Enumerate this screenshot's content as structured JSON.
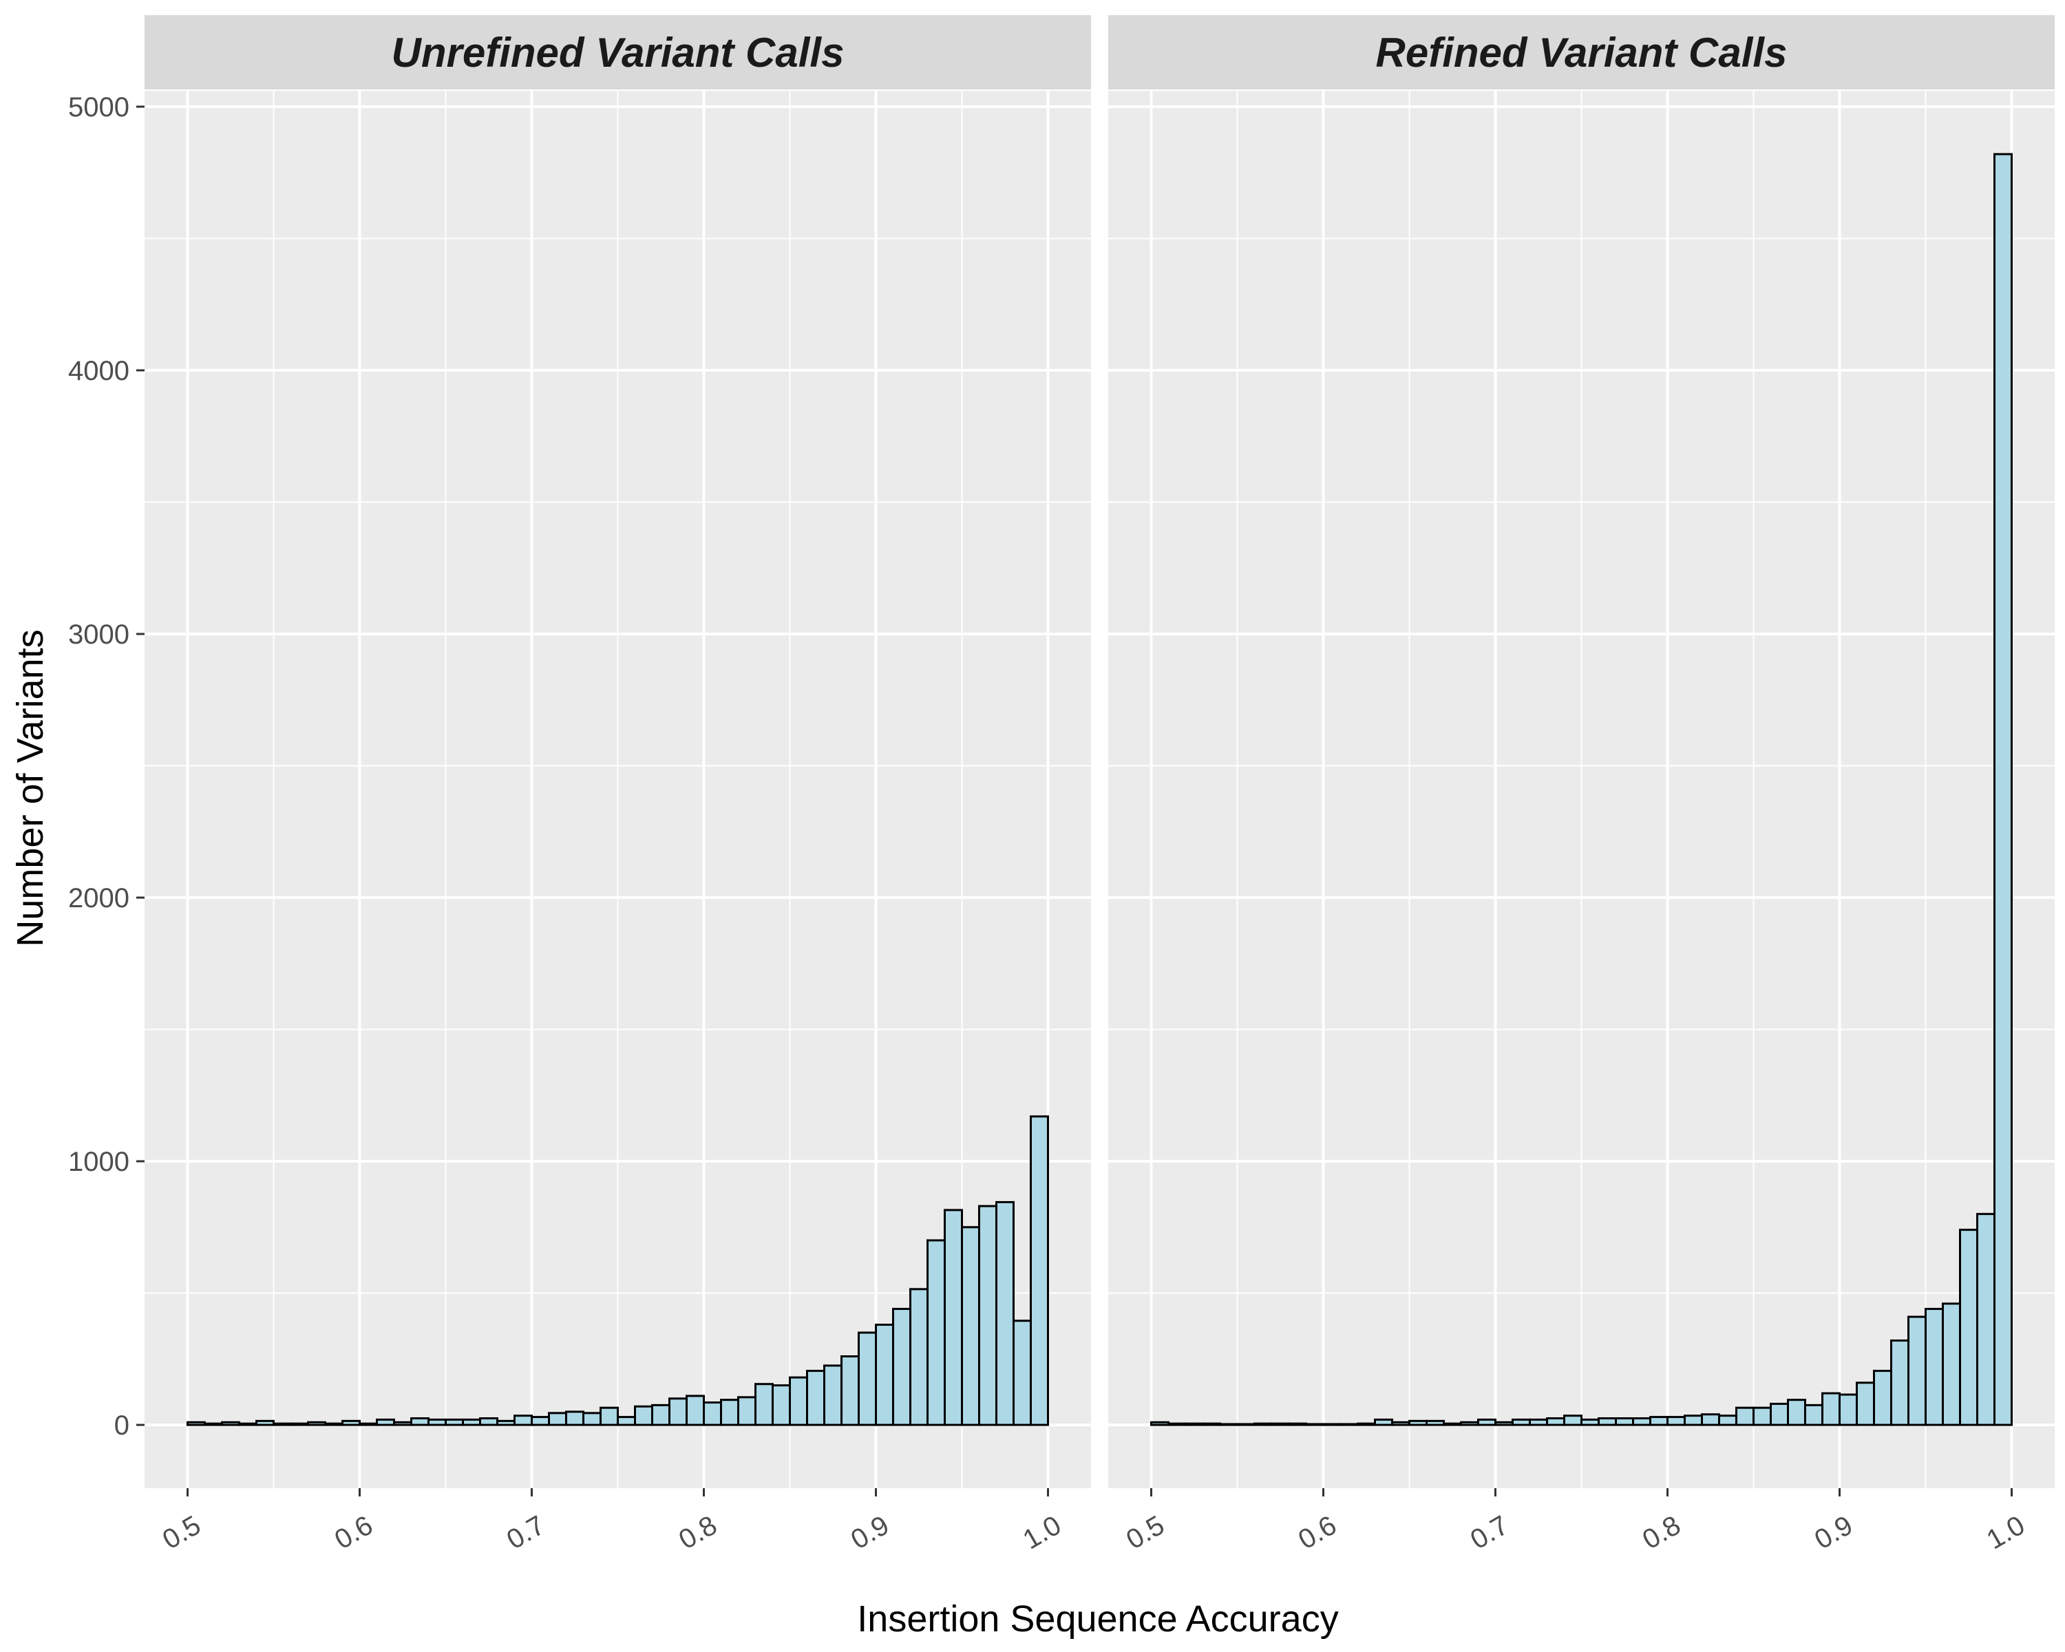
{
  "chart_data": {
    "type": "bar",
    "subtype": "faceted-histogram",
    "xlabel": "Insertion Sequence Accuracy",
    "ylabel": "Number of Variants",
    "xlim": [
      0.475,
      1.025
    ],
    "ylim": [
      -240,
      5060
    ],
    "x_ticks": [
      0.5,
      0.6,
      0.7,
      0.8,
      0.9,
      1.0
    ],
    "x_tick_labels": [
      "0.5",
      "0.6",
      "0.7",
      "0.8",
      "0.9",
      "1.0"
    ],
    "y_ticks": [
      0,
      1000,
      2000,
      3000,
      4000,
      5000
    ],
    "y_tick_labels": [
      "0",
      "1000",
      "2000",
      "3000",
      "4000",
      "5000"
    ],
    "bin_width": 0.01,
    "bin_starts": [
      0.5,
      0.51,
      0.52,
      0.53,
      0.54,
      0.55,
      0.56,
      0.57,
      0.58,
      0.59,
      0.6,
      0.61,
      0.62,
      0.63,
      0.64,
      0.65,
      0.66,
      0.67,
      0.68,
      0.69,
      0.7,
      0.71,
      0.72,
      0.73,
      0.74,
      0.75,
      0.76,
      0.77,
      0.78,
      0.79,
      0.8,
      0.81,
      0.82,
      0.83,
      0.84,
      0.85,
      0.86,
      0.87,
      0.88,
      0.89,
      0.9,
      0.91,
      0.92,
      0.93,
      0.94,
      0.95,
      0.96,
      0.97,
      0.98,
      0.99
    ],
    "grid": true,
    "legend": "none",
    "colors": {
      "bar_fill": "#add8e6",
      "bar_stroke": "#000000",
      "panel_bg": "#ebebeb",
      "strip_bg": "#d9d9d9",
      "grid": "#ffffff"
    },
    "panels": [
      {
        "title": "Unrefined Variant Calls",
        "values": [
          10,
          5,
          10,
          5,
          15,
          5,
          5,
          10,
          5,
          15,
          5,
          20,
          10,
          25,
          20,
          20,
          20,
          25,
          15,
          35,
          30,
          45,
          50,
          45,
          65,
          30,
          70,
          75,
          100,
          110,
          85,
          95,
          105,
          155,
          150,
          180,
          205,
          225,
          260,
          350,
          380,
          440,
          515,
          700,
          815,
          750,
          830,
          845,
          395,
          1170
        ]
      },
      {
        "title": "Refined Variant Calls",
        "values": [
          10,
          5,
          5,
          5,
          3,
          3,
          5,
          5,
          5,
          3,
          3,
          3,
          5,
          20,
          10,
          15,
          15,
          5,
          10,
          20,
          10,
          20,
          20,
          25,
          35,
          20,
          25,
          25,
          25,
          30,
          30,
          35,
          40,
          35,
          65,
          65,
          80,
          95,
          75,
          120,
          115,
          160,
          205,
          320,
          410,
          440,
          460,
          740,
          800,
          4820
        ]
      }
    ]
  }
}
